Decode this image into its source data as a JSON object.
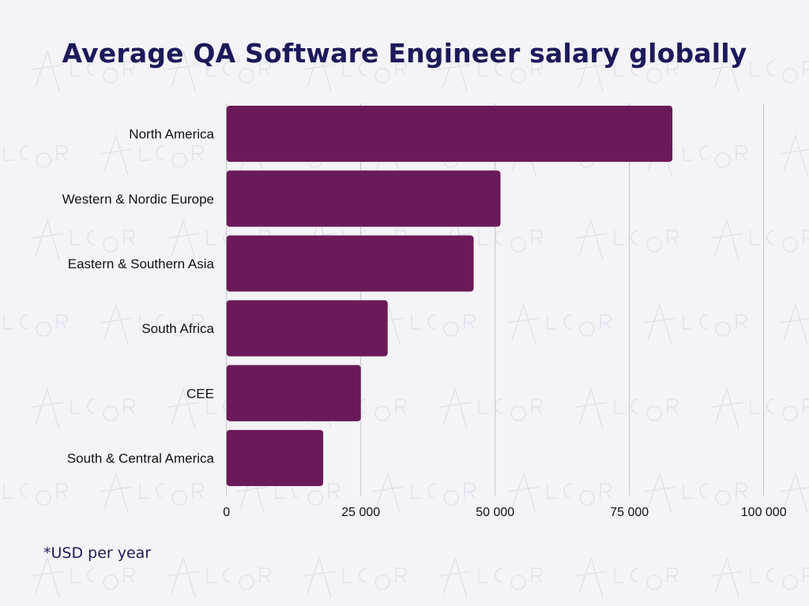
{
  "chart_data": {
    "type": "bar",
    "orientation": "horizontal",
    "title": "Average QA Software Engineer salary globally",
    "categories": [
      "North America",
      "Western & Nordic Europe",
      "Eastern & Southern Asia",
      "South Africa",
      "CEE",
      "South & Central America"
    ],
    "values": [
      83000,
      51000,
      46000,
      30000,
      25000,
      18000
    ],
    "xlim": [
      0,
      100000
    ],
    "xticks": [
      "0",
      "25 000",
      "50 000",
      "75 000",
      "100 000"
    ],
    "grid": true,
    "bar_color": "#6a1a58",
    "footnote": "*USD per year",
    "watermark": "ALCOR"
  }
}
